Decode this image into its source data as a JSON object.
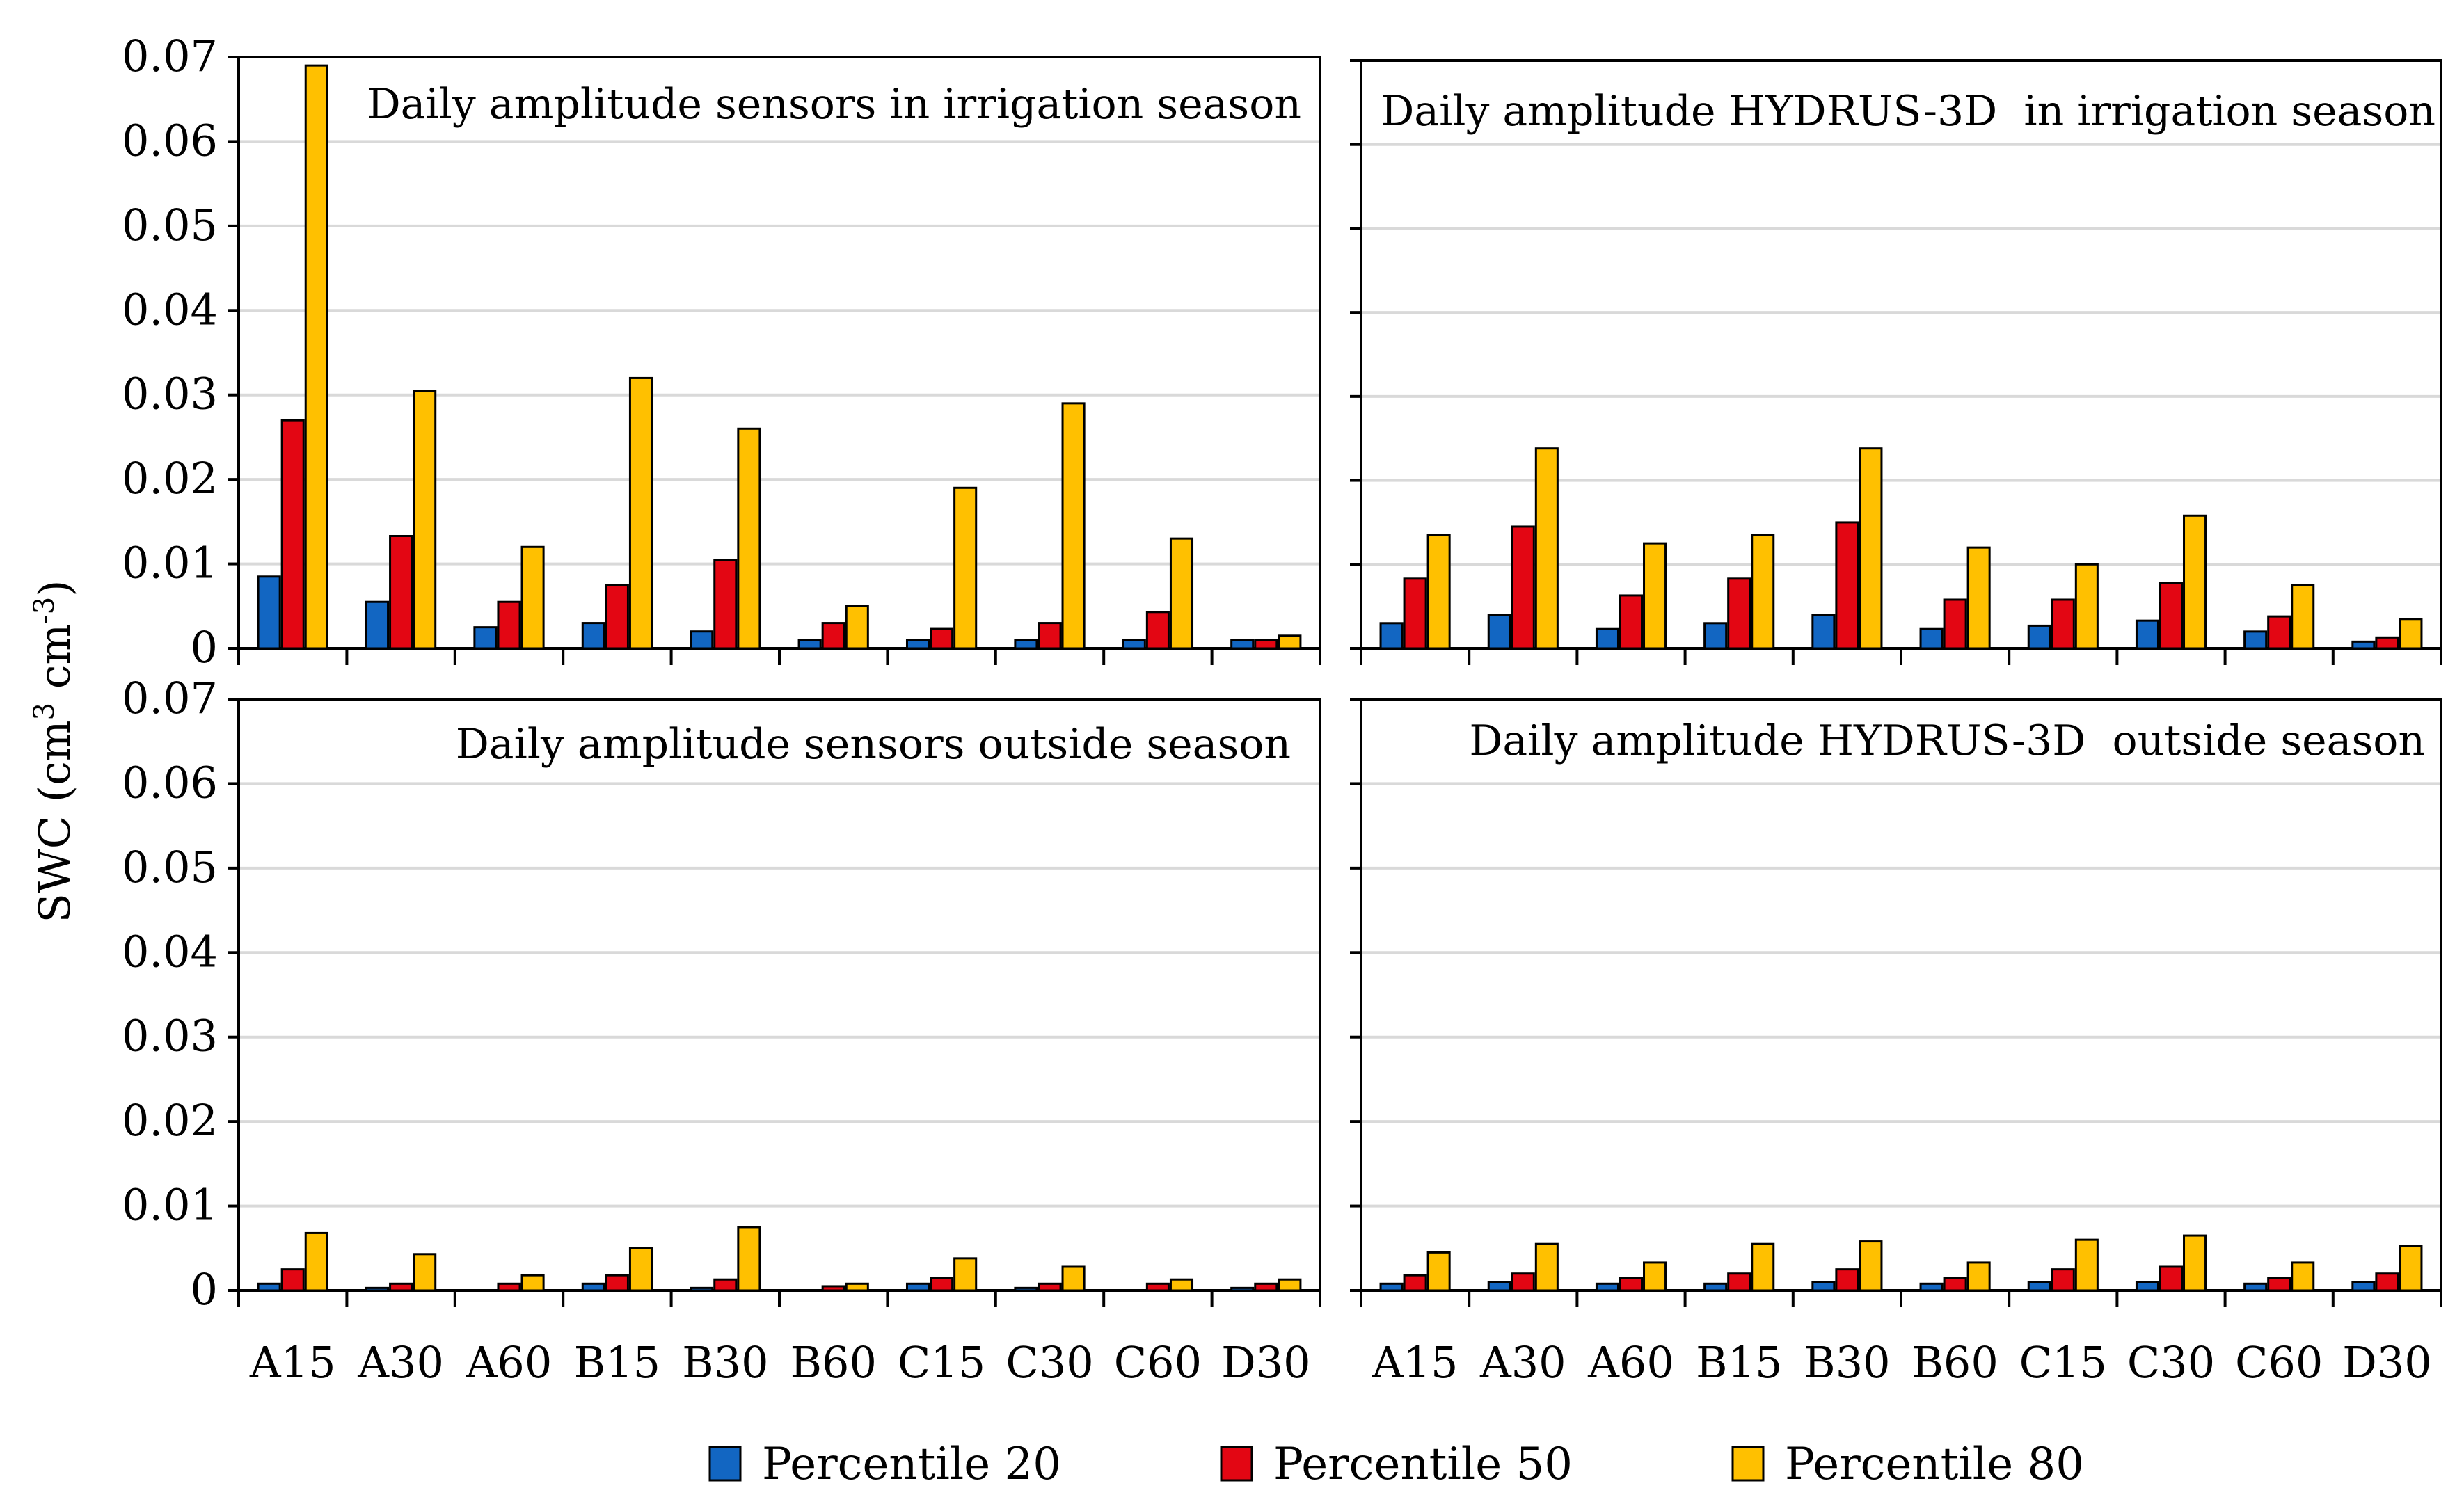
{
  "figure": {
    "ylabel_main": "SWC (cm",
    "ylabel_sup1": "3",
    "ylabel_mid": " cm",
    "ylabel_sup2": "-3",
    "ylabel_end": ")"
  },
  "legend": [
    {
      "label": "Percentile 20",
      "color": "#1266c2"
    },
    {
      "label": "Percentile 50",
      "color": "#e30613"
    },
    {
      "label": "Percentile 80",
      "color": "#ffc000"
    }
  ],
  "chart_data": [
    {
      "type": "bar",
      "title": "Daily amplitude sensors in irrigation season",
      "categories": [
        "A15",
        "A30",
        "A60",
        "B15",
        "B30",
        "B60",
        "C15",
        "C30",
        "C60",
        "D30"
      ],
      "ylim": [
        0,
        0.07
      ],
      "yticks": [
        "0",
        "0.01",
        "0.02",
        "0.03",
        "0.04",
        "0.05",
        "0.06",
        "0.07"
      ],
      "series": [
        {
          "name": "Percentile 20",
          "values": [
            0.0085,
            0.0055,
            0.0025,
            0.003,
            0.002,
            0.001,
            0.001,
            0.001,
            0.001,
            0.001
          ]
        },
        {
          "name": "Percentile 50",
          "values": [
            0.027,
            0.0133,
            0.0055,
            0.0075,
            0.0105,
            0.003,
            0.0023,
            0.003,
            0.0043,
            0.001
          ]
        },
        {
          "name": "Percentile 80",
          "values": [
            0.069,
            0.0305,
            0.012,
            0.032,
            0.026,
            0.005,
            0.019,
            0.029,
            0.013,
            0.0015
          ]
        }
      ]
    },
    {
      "type": "bar",
      "title": "Daily amplitude HYDRUS-3D  in irrigation season",
      "categories": [
        "A15",
        "A30",
        "A60",
        "B15",
        "B30",
        "B60",
        "C15",
        "C30",
        "C60",
        "D30"
      ],
      "ylim": [
        0,
        0.07
      ],
      "series": [
        {
          "name": "Percentile 20",
          "values": [
            0.003,
            0.004,
            0.0023,
            0.003,
            0.004,
            0.0023,
            0.0027,
            0.0033,
            0.002,
            0.0008
          ]
        },
        {
          "name": "Percentile 50",
          "values": [
            0.0083,
            0.0145,
            0.0063,
            0.0083,
            0.015,
            0.0058,
            0.0058,
            0.0078,
            0.0038,
            0.0013
          ]
        },
        {
          "name": "Percentile 80",
          "values": [
            0.0135,
            0.0238,
            0.0125,
            0.0135,
            0.0238,
            0.012,
            0.01,
            0.0158,
            0.0075,
            0.0035
          ]
        }
      ]
    },
    {
      "type": "bar",
      "title": "Daily amplitude sensors outside season",
      "categories": [
        "A15",
        "A30",
        "A60",
        "B15",
        "B30",
        "B60",
        "C15",
        "C30",
        "C60",
        "D30"
      ],
      "ylim": [
        0,
        0.07
      ],
      "yticks": [
        "0",
        "0.01",
        "0.02",
        "0.03",
        "0.04",
        "0.05",
        "0.06",
        "0.07"
      ],
      "xticks": [
        "A15",
        "A30",
        "A60",
        "B15",
        "B30",
        "B60",
        "C15",
        "C30",
        "C60",
        "D30"
      ],
      "series": [
        {
          "name": "Percentile 20",
          "values": [
            0.0008,
            0.0003,
            0.0,
            0.0008,
            0.0003,
            0.0,
            0.0008,
            0.0003,
            0.0,
            0.0003
          ]
        },
        {
          "name": "Percentile 50",
          "values": [
            0.0025,
            0.0008,
            0.0008,
            0.0018,
            0.0013,
            0.0005,
            0.0015,
            0.0008,
            0.0008,
            0.0008
          ]
        },
        {
          "name": "Percentile 80",
          "values": [
            0.0068,
            0.0043,
            0.0018,
            0.005,
            0.0075,
            0.0008,
            0.0038,
            0.0028,
            0.0013,
            0.0013
          ]
        }
      ]
    },
    {
      "type": "bar",
      "title": "Daily amplitude HYDRUS-3D  outside season",
      "categories": [
        "A15",
        "A30",
        "A60",
        "B15",
        "B30",
        "B60",
        "C15",
        "C30",
        "C60",
        "D30"
      ],
      "ylim": [
        0,
        0.07
      ],
      "xticks": [
        "A15",
        "A30",
        "A60",
        "B15",
        "B30",
        "B60",
        "C15",
        "C30",
        "C60",
        "D30"
      ],
      "series": [
        {
          "name": "Percentile 20",
          "values": [
            0.0008,
            0.001,
            0.0008,
            0.0008,
            0.001,
            0.0008,
            0.001,
            0.001,
            0.0008,
            0.001
          ]
        },
        {
          "name": "Percentile 50",
          "values": [
            0.0018,
            0.002,
            0.0015,
            0.002,
            0.0025,
            0.0015,
            0.0025,
            0.0028,
            0.0015,
            0.002
          ]
        },
        {
          "name": "Percentile 80",
          "values": [
            0.0045,
            0.0055,
            0.0033,
            0.0055,
            0.0058,
            0.0033,
            0.006,
            0.0065,
            0.0033,
            0.0053
          ]
        }
      ]
    }
  ]
}
